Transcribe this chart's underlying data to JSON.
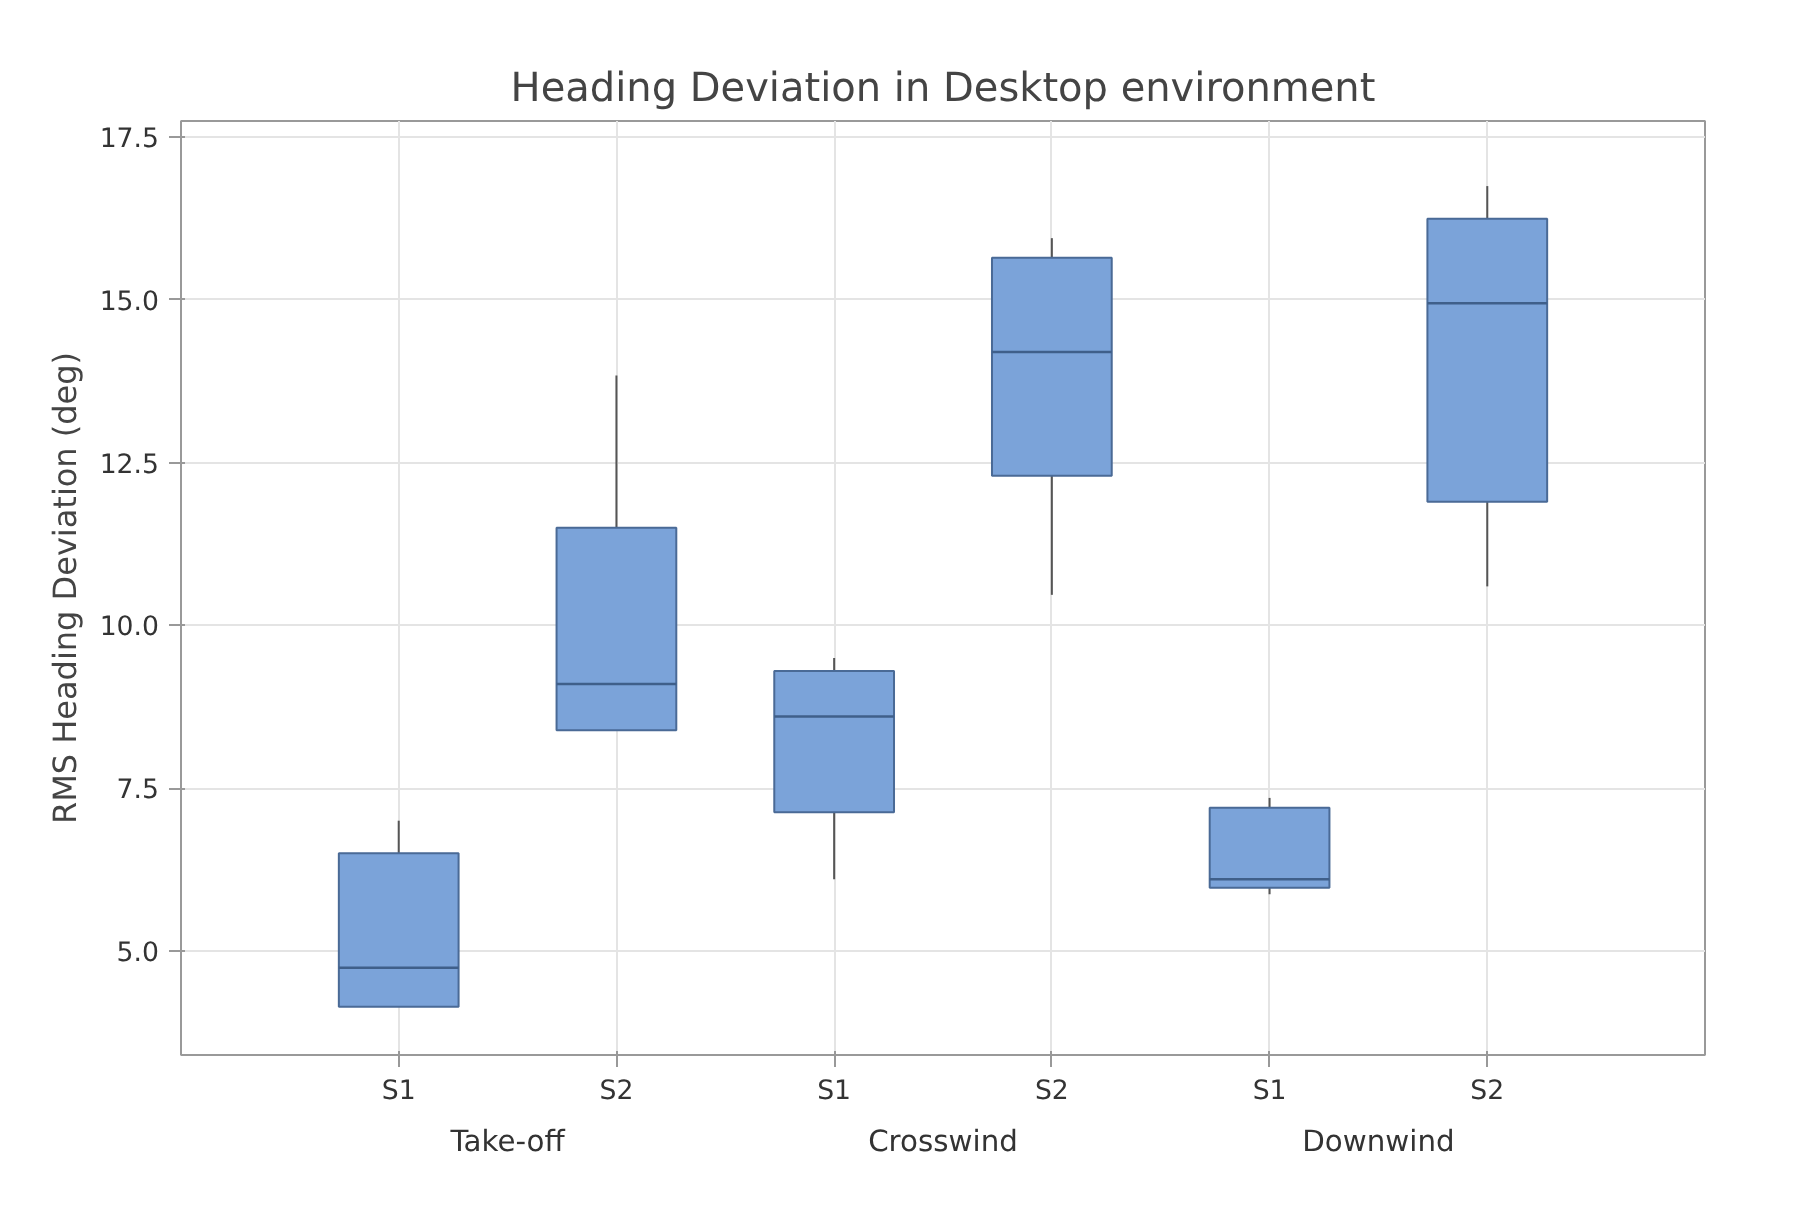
{
  "chart_data": {
    "type": "box",
    "title": "Heading Deviation in Desktop environment",
    "ylabel": "RMS Heading Deviation (deg)",
    "categories": [
      "S1",
      "S2",
      "S1",
      "S2",
      "S1",
      "S2"
    ],
    "annotations": [
      "Take-off",
      "Crosswind",
      "Downwind"
    ],
    "boxes": [
      {
        "low": 4.14,
        "q1": 4.14,
        "median": 4.74,
        "q3": 6.5,
        "high": 7.0
      },
      {
        "low": 8.39,
        "q1": 8.39,
        "median": 9.1,
        "q3": 11.5,
        "high": 13.84
      },
      {
        "low": 6.1,
        "q1": 7.13,
        "median": 8.6,
        "q3": 9.3,
        "high": 9.5
      },
      {
        "low": 10.47,
        "q1": 12.3,
        "median": 14.2,
        "q3": 15.65,
        "high": 15.95
      },
      {
        "low": 5.87,
        "q1": 5.97,
        "median": 6.1,
        "q3": 7.2,
        "high": 7.35
      },
      {
        "low": 10.6,
        "q1": 11.9,
        "median": 14.95,
        "q3": 16.25,
        "high": 16.75
      }
    ],
    "color": "#7ba3d9",
    "ylim": [
      3.4,
      17.75
    ],
    "yticks": [
      {
        "value": 5,
        "label": "5.0"
      },
      {
        "value": 7.5,
        "label": "7.5"
      },
      {
        "value": 10,
        "label": "10.0"
      },
      {
        "value": 12.5,
        "label": "12.5"
      },
      {
        "value": 15,
        "label": "15.0"
      },
      {
        "value": 17.5,
        "label": "17.5"
      }
    ],
    "grid": true
  }
}
